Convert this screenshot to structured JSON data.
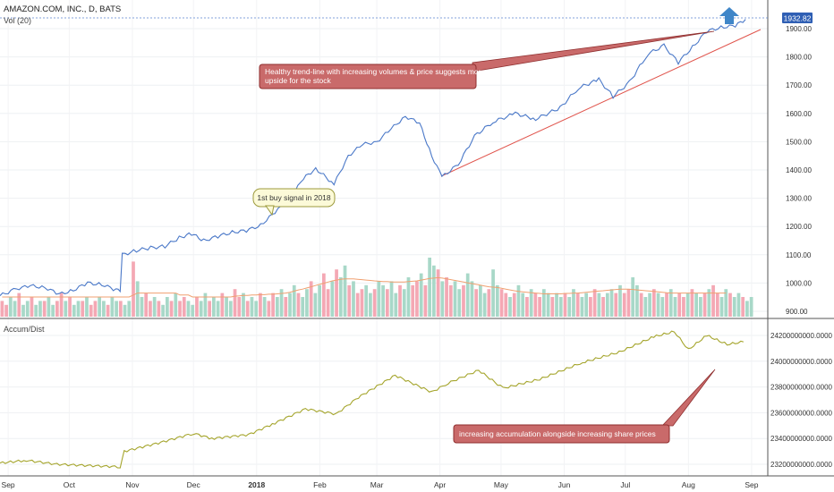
{
  "header": {
    "title": "AMAZON.COM, INC., D, BATS",
    "volume_label": "Vol (20)",
    "indicator_label": "Accum/Dist"
  },
  "last_price_badge": "1932.82",
  "annotations": {
    "trend_note": "Healthy trend-line with increasing volumes & price suggests more upside for the stock",
    "buy_signal": "1st buy signal in 2018",
    "accum_note": "increasing accumulation alongside increasing share prices"
  },
  "colors": {
    "price_line": "#4a78c8",
    "trend_line": "#e0544c",
    "ad_line": "#a5a52c",
    "vol_up": "#a8d8c8",
    "vol_down": "#f4a8b4",
    "vol_ma": "#f0a070",
    "note_fill": "#c96a6a",
    "note_stroke": "#8f2f2f",
    "buy_fill": "#fcfad8",
    "buy_stroke": "#9c9a3c",
    "arrow": "#3f86c8",
    "badge": "#2f5fb4"
  },
  "chart_data": [
    {
      "type": "line",
      "name": "price",
      "x_ticks": [
        "Sep",
        "Oct",
        "Nov",
        "Dec",
        "2018",
        "Feb",
        "Mar",
        "Apr",
        "May",
        "Jun",
        "Jul",
        "Aug",
        "Sep"
      ],
      "y_ticks": [
        900,
        1000,
        1100,
        1200,
        1300,
        1400,
        1500,
        1600,
        1700,
        1800,
        1900
      ],
      "y_tick_labels": [
        "900.00",
        "1000.00",
        "1100.00",
        "1200.00",
        "1300.00",
        "1400.00",
        "1500.00",
        "1600.00",
        "1700.00",
        "1800.00",
        "1900.00"
      ],
      "ylim": [
        880,
        1960
      ],
      "points": [
        [
          "2017-08-28",
          955
        ],
        [
          "2017-09-05",
          980
        ],
        [
          "2017-09-12",
          990
        ],
        [
          "2017-09-19",
          985
        ],
        [
          "2017-09-26",
          960
        ],
        [
          "2017-10-03",
          975
        ],
        [
          "2017-10-10",
          1000
        ],
        [
          "2017-10-17",
          995
        ],
        [
          "2017-10-24",
          975
        ],
        [
          "2017-10-26",
          975
        ],
        [
          "2017-10-27",
          1100
        ],
        [
          "2017-11-03",
          1115
        ],
        [
          "2017-11-10",
          1125
        ],
        [
          "2017-11-17",
          1130
        ],
        [
          "2017-11-24",
          1160
        ],
        [
          "2017-11-30",
          1175
        ],
        [
          "2017-12-06",
          1150
        ],
        [
          "2017-12-13",
          1165
        ],
        [
          "2017-12-20",
          1180
        ],
        [
          "2017-12-27",
          1185
        ],
        [
          "2018-01-03",
          1205
        ],
        [
          "2018-01-10",
          1250
        ],
        [
          "2018-01-17",
          1295
        ],
        [
          "2018-01-24",
          1370
        ],
        [
          "2018-01-30",
          1405
        ],
        [
          "2018-02-08",
          1350
        ],
        [
          "2018-02-15",
          1450
        ],
        [
          "2018-02-22",
          1490
        ],
        [
          "2018-03-01",
          1500
        ],
        [
          "2018-03-08",
          1545
        ],
        [
          "2018-03-15",
          1590
        ],
        [
          "2018-03-22",
          1565
        ],
        [
          "2018-03-28",
          1450
        ],
        [
          "2018-04-02",
          1375
        ],
        [
          "2018-04-10",
          1420
        ],
        [
          "2018-04-18",
          1520
        ],
        [
          "2018-04-27",
          1570
        ],
        [
          "2018-05-08",
          1600
        ],
        [
          "2018-05-18",
          1580
        ],
        [
          "2018-05-30",
          1620
        ],
        [
          "2018-06-08",
          1690
        ],
        [
          "2018-06-18",
          1720
        ],
        [
          "2018-06-25",
          1660
        ],
        [
          "2018-07-03",
          1710
        ],
        [
          "2018-07-12",
          1810
        ],
        [
          "2018-07-20",
          1840
        ],
        [
          "2018-07-27",
          1780
        ],
        [
          "2018-08-03",
          1835
        ],
        [
          "2018-08-10",
          1890
        ],
        [
          "2018-08-17",
          1905
        ],
        [
          "2018-08-24",
          1910
        ],
        [
          "2018-08-29",
          1932.82
        ]
      ]
    },
    {
      "type": "bar",
      "name": "volume",
      "values": [
        4,
        3,
        5,
        4,
        6,
        3,
        4,
        5,
        3,
        4,
        4,
        5,
        3,
        4,
        6,
        4,
        5,
        3,
        4,
        4,
        5,
        3,
        4,
        5,
        4,
        3,
        5,
        4,
        4,
        3,
        4,
        14,
        9,
        5,
        6,
        4,
        5,
        4,
        3,
        5,
        4,
        6,
        4,
        5,
        4,
        3,
        5,
        4,
        6,
        4,
        5,
        4,
        6,
        5,
        4,
        7,
        5,
        6,
        4,
        5,
        4,
        6,
        5,
        4,
        6,
        5,
        7,
        5,
        6,
        8,
        6,
        5,
        7,
        9,
        6,
        8,
        11,
        7,
        9,
        12,
        10,
        13,
        8,
        9,
        6,
        7,
        8,
        6,
        7,
        9,
        8,
        7,
        9,
        6,
        8,
        7,
        10,
        8,
        9,
        11,
        8,
        15,
        13,
        12,
        9,
        10,
        8,
        9,
        7,
        8,
        11,
        9,
        7,
        8,
        6,
        7,
        12,
        8,
        7,
        6,
        5,
        6,
        8,
        6,
        5,
        7,
        6,
        5,
        7,
        6,
        5,
        6,
        5,
        6,
        5,
        7,
        6,
        5,
        6,
        5,
        7,
        6,
        5,
        6,
        7,
        6,
        8,
        6,
        7,
        10,
        8,
        6,
        5,
        6,
        7,
        6,
        5,
        6,
        7,
        5,
        6,
        5,
        6,
        7,
        6,
        5,
        6,
        7,
        8,
        6,
        5,
        7,
        6,
        5,
        6,
        5,
        4,
        5
      ],
      "ma": [
        5,
        5,
        5,
        5,
        5,
        5,
        5,
        5,
        5,
        5,
        5,
        5,
        5,
        5,
        5,
        5,
        5,
        5,
        5,
        5,
        5,
        5,
        5,
        5,
        5,
        5,
        5,
        5,
        5,
        5,
        5,
        5.5,
        6,
        6,
        6,
        6,
        6,
        6,
        6,
        6,
        6,
        6,
        5.5,
        5.5,
        5.5,
        5,
        5,
        5,
        5,
        5,
        5,
        5,
        5,
        5,
        5,
        5.2,
        5.3,
        5.4,
        5.4,
        5.5,
        5.5,
        5.6,
        5.6,
        5.7,
        5.7,
        5.8,
        5.9,
        6,
        6.2,
        6.5,
        6.8,
        7,
        7.3,
        7.6,
        7.9,
        8.2,
        8.5,
        8.8,
        9.1,
        9.3,
        9.5,
        9.6,
        9.6,
        9.6,
        9.5,
        9.4,
        9.3,
        9.2,
        9.1,
        9,
        8.9,
        8.9,
        8.8,
        8.8,
        8.8,
        8.8,
        8.9,
        9,
        9.1,
        9.3,
        9.5,
        9.7,
        9.8,
        9.9,
        9.8,
        9.6,
        9.4,
        9.2,
        9,
        8.8,
        8.6,
        8.4,
        8.2,
        8,
        7.8,
        7.6,
        7.5,
        7.4,
        7.2,
        7,
        6.8,
        6.6,
        6.4,
        6.3,
        6.2,
        6.1,
        6,
        5.9,
        5.8,
        5.8,
        5.8,
        5.8,
        5.8,
        5.9,
        5.9,
        6,
        6,
        6.1,
        6.2,
        6.3,
        6.4,
        6.5,
        6.6,
        6.7,
        6.8,
        6.9,
        7,
        7,
        7,
        6.9,
        6.8,
        6.7,
        6.6,
        6.5,
        6.4,
        6.3,
        6.2,
        6.1,
        6,
        6,
        6,
        6,
        6,
        6,
        6,
        6,
        6,
        6,
        6,
        6,
        6,
        6
      ]
    },
    {
      "type": "line",
      "name": "accum_dist",
      "y_ticks": [
        23200000000,
        23400000000,
        23600000000,
        23800000000,
        24000000000,
        24200000000
      ],
      "y_tick_labels": [
        "23200000000.0000",
        "23400000000.0000",
        "23600000000.0000",
        "23800000000.0000",
        "24000000000.0000",
        "24200000000.0000"
      ],
      "ylim": [
        23140000000,
        24260000000
      ],
      "points": [
        [
          "2017-08-28",
          23210000000
        ],
        [
          "2017-09-10",
          23230000000
        ],
        [
          "2017-09-25",
          23200000000
        ],
        [
          "2017-10-10",
          23190000000
        ],
        [
          "2017-10-26",
          23180000000
        ],
        [
          "2017-10-28",
          23300000000
        ],
        [
          "2017-11-15",
          23370000000
        ],
        [
          "2017-12-01",
          23440000000
        ],
        [
          "2017-12-10",
          23400000000
        ],
        [
          "2017-12-28",
          23430000000
        ],
        [
          "2018-01-10",
          23520000000
        ],
        [
          "2018-01-25",
          23630000000
        ],
        [
          "2018-02-09",
          23590000000
        ],
        [
          "2018-02-20",
          23720000000
        ],
        [
          "2018-03-10",
          23890000000
        ],
        [
          "2018-03-28",
          23760000000
        ],
        [
          "2018-04-05",
          23830000000
        ],
        [
          "2018-04-20",
          23930000000
        ],
        [
          "2018-05-02",
          23790000000
        ],
        [
          "2018-05-20",
          23860000000
        ],
        [
          "2018-06-10",
          23990000000
        ],
        [
          "2018-06-28",
          24070000000
        ],
        [
          "2018-07-15",
          24190000000
        ],
        [
          "2018-07-25",
          24230000000
        ],
        [
          "2018-08-01",
          24090000000
        ],
        [
          "2018-08-10",
          24200000000
        ],
        [
          "2018-08-20",
          24130000000
        ],
        [
          "2018-08-28",
          24150000000
        ]
      ]
    }
  ]
}
